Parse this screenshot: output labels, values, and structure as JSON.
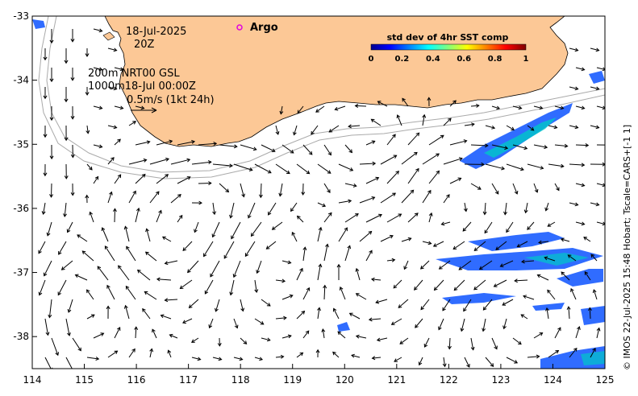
{
  "map": {
    "date": "18-Jul-2025",
    "time": "20Z",
    "argo_label": "Argo",
    "depth_label_1": "200m  NRT00 GSL",
    "depth_label_2": "1000m18-Jul 00:00Z",
    "scale_label": "0.5m/s (1kt 24h)",
    "credit": "© IMOS 22-Jul-2025 15:48 Hobart; Tscale=CARS+[-1 1]",
    "colors": {
      "land": "#fcc896",
      "ocean": "#ffffff",
      "contour": "#aaaaaa",
      "argo_marker": "#e000e0"
    },
    "lon_range": [
      114,
      125
    ],
    "lat_range": [
      -38.5,
      -33
    ]
  },
  "axes": {
    "x_ticks": [
      "114",
      "115",
      "116",
      "117",
      "118",
      "119",
      "120",
      "121",
      "122",
      "123",
      "124",
      "125"
    ],
    "y_ticks": [
      "-33",
      "-34",
      "-35",
      "-36",
      "-37",
      "-38"
    ]
  },
  "colorbar": {
    "title": "std dev of 4hr SST comp",
    "ticks": [
      "0",
      "0.2",
      "0.4",
      "0.6",
      "0.8",
      "1"
    ],
    "range": [
      0,
      1
    ]
  }
}
